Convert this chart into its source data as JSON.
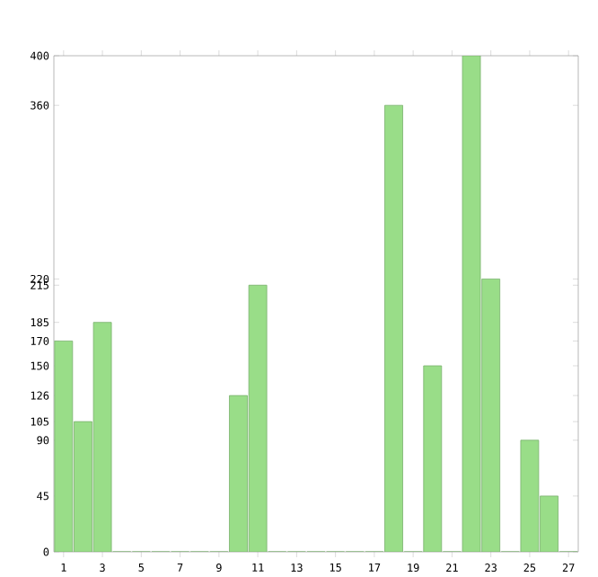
{
  "chart_data": {
    "type": "bar",
    "categories": [
      "1",
      null,
      "3",
      null,
      "5",
      null,
      "7",
      null,
      "9",
      null,
      "11",
      null,
      "13",
      null,
      "15",
      null,
      "17",
      null,
      "19",
      null,
      "21",
      null,
      "23",
      null,
      "25",
      null,
      "27"
    ],
    "values": [
      170,
      105,
      185,
      0,
      0,
      0,
      0,
      0,
      0,
      126,
      215,
      0,
      0,
      0,
      0,
      0,
      0,
      360,
      0,
      150,
      0,
      400,
      220,
      0,
      90,
      45,
      0
    ],
    "color": "#99dd88",
    "ylim": [
      0,
      400
    ],
    "yticks": [
      0,
      45,
      90,
      105,
      126,
      150,
      170,
      185,
      215,
      220,
      360,
      400
    ],
    "grid": false
  }
}
